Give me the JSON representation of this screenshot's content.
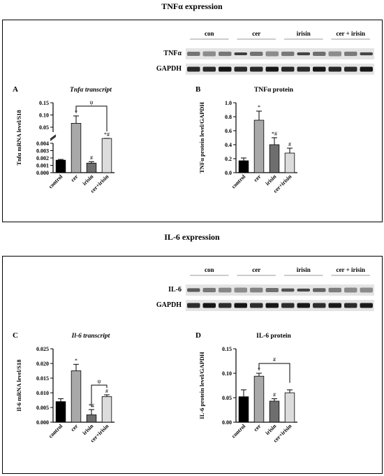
{
  "sections": [
    {
      "title": "TNFα expression",
      "blot": {
        "groups": [
          "con",
          "cer",
          "irisin",
          "cer + irisin"
        ],
        "rows": [
          "TNFα",
          "GAPDH"
        ]
      },
      "panels": [
        {
          "letter": "A",
          "title": "Tnfα transcript"
        },
        {
          "letter": "B",
          "title": "TNFα protein"
        }
      ]
    },
    {
      "title": "IL-6 expression",
      "blot": {
        "groups": [
          "con",
          "cer",
          "irisin",
          "cer + irisin"
        ],
        "rows": [
          "IL-6",
          "GAPDH"
        ]
      },
      "panels": [
        {
          "letter": "C",
          "title": "Il-6 transcript"
        },
        {
          "letter": "D",
          "title": "IL-6 protein"
        }
      ]
    }
  ],
  "colors": {
    "control": "#000000",
    "cer": "#a9a9a9",
    "irisin": "#6e6e6e",
    "cer_irisin": "#dcdcdc"
  },
  "chart_data": [
    {
      "id": "A",
      "type": "bar",
      "title": "Tnfα transcript",
      "xlabel": "",
      "ylabel": "Tnfα mRNA level/S18",
      "categories": [
        "control",
        "cer",
        "irisin",
        "cer+irisin"
      ],
      "broken_axis": true,
      "lower_segment": {
        "ylim": [
          0,
          0.004
        ],
        "ticks": [
          "0.000",
          "0.001",
          "0.002",
          "0.003",
          "0.004"
        ]
      },
      "upper_segment": {
        "ylim": [
          0.03,
          0.15
        ],
        "ticks": [
          "0.05",
          "0.10",
          "0.15"
        ]
      },
      "values": [
        0.0017,
        0.066,
        0.0013,
        0.0041
      ],
      "errors": [
        0.0001,
        0.03,
        0.0002,
        0.0003
      ],
      "annotations": [
        "",
        "*",
        "#",
        "*#"
      ],
      "brackets": [
        {
          "from": "cer",
          "to": "cer+irisin",
          "label": "ψ"
        }
      ]
    },
    {
      "id": "B",
      "type": "bar",
      "title": "TNFα protein",
      "xlabel": "",
      "ylabel": "TNFα protein level/GAPDH",
      "categories": [
        "control",
        "cer",
        "irisin",
        "cer+irisin"
      ],
      "ylim": [
        0,
        1.0
      ],
      "ticks": [
        "0.0",
        "0.2",
        "0.4",
        "0.6",
        "0.8",
        "1.0"
      ],
      "values": [
        0.17,
        0.75,
        0.4,
        0.28
      ],
      "errors": [
        0.04,
        0.13,
        0.1,
        0.07
      ],
      "annotations": [
        "",
        "*",
        "*#",
        "#"
      ],
      "brackets": []
    },
    {
      "id": "C",
      "type": "bar",
      "title": "Il-6 transcript",
      "xlabel": "",
      "ylabel": "Il-6 mRNA level/S18",
      "categories": [
        "control",
        "cer",
        "irisin",
        "cer+irisin"
      ],
      "ylim": [
        0,
        0.025
      ],
      "ticks": [
        "0.000",
        "0.005",
        "0.010",
        "0.015",
        "0.020",
        "0.025"
      ],
      "values": [
        0.007,
        0.0175,
        0.0025,
        0.0087
      ],
      "errors": [
        0.001,
        0.0022,
        0.0018,
        0.0006
      ],
      "annotations": [
        "",
        "*",
        "*#",
        "#"
      ],
      "brackets": [
        {
          "from": "irisin",
          "to": "cer+irisin",
          "label": "ψ"
        }
      ]
    },
    {
      "id": "D",
      "type": "bar",
      "title": "IL-6 protein",
      "xlabel": "",
      "ylabel": "IL-6 protein level/GAPDH",
      "categories": [
        "control",
        "cer",
        "irisin",
        "cer+irisin"
      ],
      "ylim": [
        0,
        0.15
      ],
      "ticks": [
        "0.00",
        "0.05",
        "0.10",
        "0.15"
      ],
      "values": [
        0.052,
        0.094,
        0.043,
        0.06
      ],
      "errors": [
        0.014,
        0.006,
        0.005,
        0.006
      ],
      "annotations": [
        "",
        "*",
        "#",
        ""
      ],
      "brackets": [
        {
          "from": "cer",
          "to": "cer+irisin",
          "label": "#"
        }
      ]
    }
  ]
}
